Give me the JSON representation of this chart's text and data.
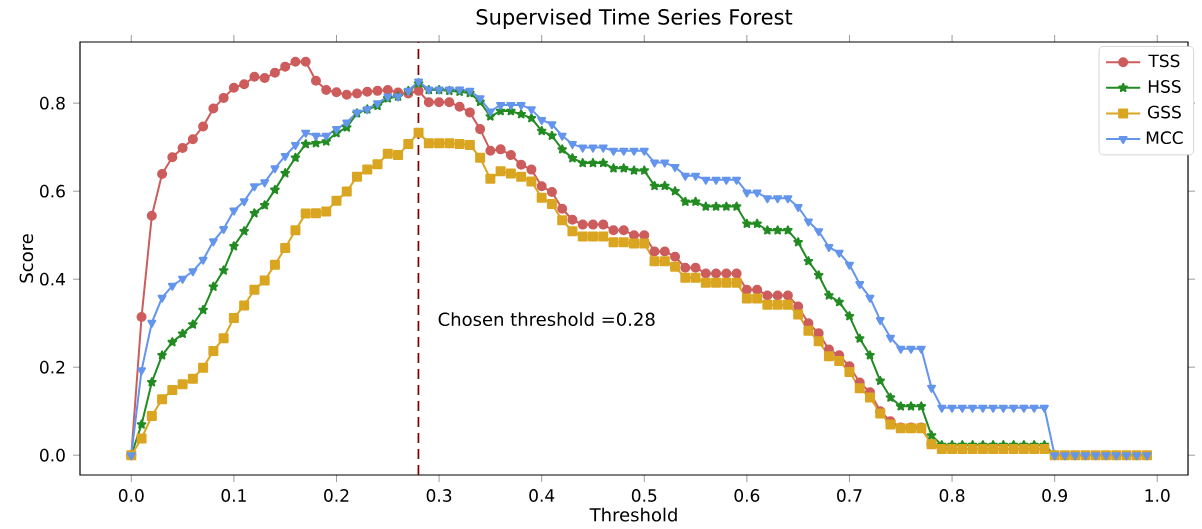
{
  "chart_data": {
    "type": "line",
    "title": "Supervised Time Series Forest",
    "xlabel": "Threshold",
    "ylabel": "Score",
    "x": [
      0,
      0.01,
      0.02,
      0.03,
      0.04,
      0.05,
      0.06,
      0.07,
      0.08,
      0.09,
      0.1,
      0.11,
      0.12,
      0.13,
      0.14,
      0.15,
      0.16,
      0.17,
      0.18,
      0.19,
      0.2,
      0.21,
      0.22,
      0.23,
      0.24,
      0.25,
      0.26,
      0.27,
      0.28,
      0.29,
      0.3,
      0.31,
      0.32,
      0.33,
      0.34,
      0.35,
      0.36,
      0.37,
      0.38,
      0.39,
      0.4,
      0.41,
      0.42,
      0.43,
      0.44,
      0.45,
      0.46,
      0.47,
      0.48,
      0.49,
      0.5,
      0.51,
      0.52,
      0.53,
      0.54,
      0.55,
      0.56,
      0.57,
      0.58,
      0.59,
      0.6,
      0.61,
      0.62,
      0.63,
      0.64,
      0.65,
      0.66,
      0.67,
      0.68,
      0.69,
      0.7,
      0.71,
      0.72,
      0.73,
      0.74,
      0.75,
      0.76,
      0.77,
      0.78,
      0.79,
      0.8,
      0.81,
      0.82,
      0.83,
      0.84,
      0.85,
      0.86,
      0.87,
      0.88,
      0.89,
      0.9,
      0.91,
      0.92,
      0.93,
      0.94,
      0.95,
      0.96,
      0.97,
      0.98,
      0.99
    ],
    "series": [
      {
        "name": "TSS",
        "color": "#cd5c5c",
        "marker": "circle",
        "values": [
          0,
          0.314,
          0.544,
          0.639,
          0.677,
          0.698,
          0.718,
          0.747,
          0.788,
          0.812,
          0.835,
          0.843,
          0.86,
          0.857,
          0.869,
          0.883,
          0.894,
          0.894,
          0.851,
          0.83,
          0.825,
          0.819,
          0.822,
          0.826,
          0.828,
          0.83,
          0.824,
          0.822,
          0.828,
          0.802,
          0.802,
          0.802,
          0.792,
          0.779,
          0.741,
          0.692,
          0.695,
          0.682,
          0.66,
          0.649,
          0.611,
          0.598,
          0.56,
          0.535,
          0.524,
          0.524,
          0.524,
          0.511,
          0.511,
          0.5,
          0.5,
          0.463,
          0.463,
          0.451,
          0.426,
          0.426,
          0.413,
          0.413,
          0.413,
          0.413,
          0.376,
          0.376,
          0.363,
          0.363,
          0.363,
          0.338,
          0.3,
          0.277,
          0.24,
          0.227,
          0.202,
          0.165,
          0.143,
          0.1,
          0.077,
          0.063,
          0.063,
          0.063,
          0.025,
          0.014,
          null,
          null,
          null,
          null,
          null,
          null,
          null,
          null,
          null,
          null,
          null,
          null,
          null,
          null,
          null,
          null,
          null,
          null,
          null,
          null
        ]
      },
      {
        "name": "HSS",
        "color": "#228b22",
        "marker": "star",
        "values": [
          0,
          0.07,
          0.166,
          0.227,
          0.257,
          0.276,
          0.297,
          0.33,
          0.383,
          0.42,
          0.475,
          0.509,
          0.55,
          0.568,
          0.603,
          0.641,
          0.676,
          0.707,
          0.709,
          0.713,
          0.732,
          0.745,
          0.777,
          0.786,
          0.794,
          0.811,
          0.815,
          0.828,
          0.845,
          0.83,
          0.83,
          0.828,
          0.826,
          0.823,
          0.803,
          0.77,
          0.782,
          0.782,
          0.775,
          0.766,
          0.737,
          0.726,
          0.695,
          0.675,
          0.664,
          0.664,
          0.664,
          0.652,
          0.652,
          0.647,
          0.647,
          0.612,
          0.612,
          0.6,
          0.576,
          0.576,
          0.565,
          0.565,
          0.565,
          0.565,
          0.526,
          0.526,
          0.511,
          0.511,
          0.511,
          0.484,
          0.441,
          0.409,
          0.363,
          0.348,
          0.316,
          0.265,
          0.227,
          0.169,
          0.131,
          0.111,
          0.111,
          0.111,
          0.045,
          0.023,
          0.023,
          0.023,
          0.023,
          0.023,
          0.023,
          0.023,
          0.023,
          0.023,
          0.023,
          0.023,
          0,
          null,
          null,
          null,
          null,
          null,
          null,
          null,
          null,
          null
        ]
      },
      {
        "name": "GSS",
        "color": "#daa520",
        "marker": "square",
        "values": [
          0,
          0.038,
          0.089,
          0.127,
          0.148,
          0.161,
          0.174,
          0.199,
          0.237,
          0.266,
          0.312,
          0.34,
          0.376,
          0.397,
          0.433,
          0.471,
          0.511,
          0.549,
          0.55,
          0.554,
          0.578,
          0.599,
          0.633,
          0.649,
          0.661,
          0.685,
          0.682,
          0.707,
          0.733,
          0.709,
          0.709,
          0.709,
          0.707,
          0.705,
          0.676,
          0.628,
          0.645,
          0.64,
          0.633,
          0.622,
          0.585,
          0.571,
          0.534,
          0.509,
          0.497,
          0.497,
          0.497,
          0.484,
          0.484,
          0.481,
          0.481,
          0.441,
          0.441,
          0.428,
          0.403,
          0.403,
          0.392,
          0.392,
          0.392,
          0.392,
          0.356,
          0.356,
          0.342,
          0.342,
          0.342,
          0.32,
          0.283,
          0.259,
          0.225,
          0.214,
          0.189,
          0.152,
          0.131,
          0.095,
          0.07,
          0.061,
          0.061,
          0.061,
          0.025,
          0.014,
          0.014,
          0.014,
          0.014,
          0.014,
          0.014,
          0.014,
          0.014,
          0.014,
          0.014,
          0.014,
          0,
          0,
          0,
          0,
          0,
          0,
          0,
          0,
          0,
          0
        ]
      },
      {
        "name": "MCC",
        "color": "#6495ed",
        "marker": "triangle",
        "values": [
          0,
          0.193,
          0.301,
          0.358,
          0.385,
          0.401,
          0.418,
          0.444,
          0.486,
          0.514,
          0.556,
          0.577,
          0.611,
          0.62,
          0.652,
          0.68,
          0.705,
          0.733,
          0.726,
          0.726,
          0.741,
          0.756,
          0.779,
          0.786,
          0.8,
          0.815,
          0.815,
          0.828,
          0.849,
          0.831,
          0.831,
          0.831,
          0.831,
          0.828,
          0.811,
          0.781,
          0.796,
          0.796,
          0.796,
          0.786,
          0.762,
          0.752,
          0.726,
          0.707,
          0.699,
          0.699,
          0.699,
          0.692,
          0.692,
          0.692,
          0.692,
          0.665,
          0.665,
          0.655,
          0.635,
          0.635,
          0.626,
          0.626,
          0.626,
          0.626,
          0.597,
          0.597,
          0.584,
          0.584,
          0.584,
          0.564,
          0.531,
          0.509,
          0.473,
          0.46,
          0.433,
          0.389,
          0.358,
          0.307,
          0.267,
          0.242,
          0.242,
          0.242,
          0.153,
          0.108,
          0.108,
          0.108,
          0.108,
          0.108,
          0.108,
          0.108,
          0.108,
          0.108,
          0.108,
          0.108,
          0,
          0,
          0,
          0,
          0,
          0,
          0,
          0,
          0,
          0
        ]
      }
    ],
    "ref_lines": [
      {
        "axis": "x",
        "value": 0.28,
        "label": "Chosen threshold =0.28",
        "color": "#8b0000",
        "line_style": "dashed"
      }
    ],
    "xlim": [
      -0.05,
      1.03
    ],
    "ylim": [
      -0.045,
      0.939
    ],
    "xticks": [
      {
        "value": 0,
        "label": "0.0"
      },
      {
        "value": 0.1,
        "label": "0.1"
      },
      {
        "value": 0.2,
        "label": "0.2"
      },
      {
        "value": 0.3,
        "label": "0.3"
      },
      {
        "value": 0.4,
        "label": "0.4"
      },
      {
        "value": 0.5,
        "label": "0.5"
      },
      {
        "value": 0.6,
        "label": "0.6"
      },
      {
        "value": 0.7,
        "label": "0.7"
      },
      {
        "value": 0.8,
        "label": "0.8"
      },
      {
        "value": 0.9,
        "label": "0.9"
      },
      {
        "value": 1.0,
        "label": "1.0"
      }
    ],
    "yticks": [
      {
        "value": 0,
        "label": "0.0"
      },
      {
        "value": 0.2,
        "label": "0.2"
      },
      {
        "value": 0.4,
        "label": "0.4"
      },
      {
        "value": 0.6,
        "label": "0.6"
      },
      {
        "value": 0.8,
        "label": "0.8"
      }
    ],
    "legend": "top right",
    "line_style": "solid"
  }
}
